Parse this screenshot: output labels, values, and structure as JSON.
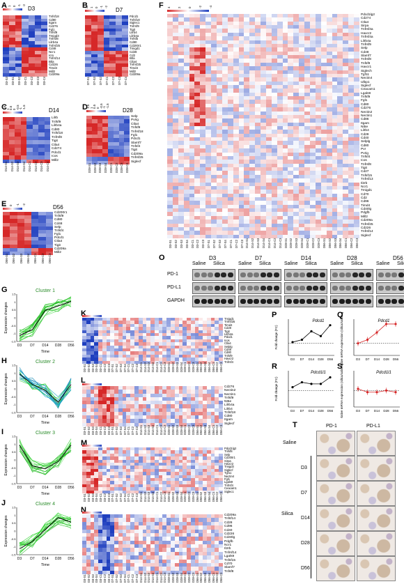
{
  "panels": {
    "A": {
      "letter": "A",
      "title": "D3",
      "scale": [
        "2",
        "1",
        "0",
        "-1",
        "-2"
      ],
      "genes": [
        "Tnfsf18",
        "Cd80",
        "Itgam",
        "Cd276",
        "Fgl1",
        "Tnfsf9",
        "Tmigd3",
        "Tnfrsf8",
        "Lilrb4a",
        "Tnfrsf25",
        "Cd48",
        "Ncr1",
        "Icm",
        "Tnfrsf14",
        "Btla",
        "Cd226",
        "Timd4",
        "Mill2",
        "Cd209a"
      ],
      "samples": [
        "D3-S3",
        "D3-S1",
        "D3-S2",
        "D3-C1",
        "D3-C2",
        "D3-C3",
        "D3-C4"
      ]
    },
    "B": {
      "letter": "B",
      "title": "D7",
      "scale": [
        "2",
        "1",
        "0",
        "-1",
        "-2"
      ],
      "genes": [
        "Pdcd1",
        "Tnfsf18",
        "Siglec1",
        "Tnfrsf9",
        "Tigit",
        "Lilrb4",
        "Lilrb4a",
        "Tnfsfb",
        "Cd80",
        "Cd200r1",
        "Tmigd1",
        "Cd28",
        "Cd2",
        "Btla",
        "Ctla4",
        "Tnfrsf25",
        "Timd4",
        "Mill2",
        "Cd209a"
      ],
      "samples": [
        "D7-S1",
        "D7-S3",
        "D7-S2",
        "D7-C1",
        "D7-C2",
        "D7-C3",
        "D7-C4"
      ]
    },
    "C": {
      "letter": "C",
      "title": "D14",
      "scale": [
        "1.5",
        "1",
        "0.5",
        "0",
        "-0.5",
        "-1",
        "-1.5"
      ],
      "genes": [
        "Lilrb",
        "Tnfsf9",
        "Lilrb4a",
        "Cd80",
        "Tnfsf18",
        "Tnfrsf8",
        "Tigit",
        "Ctla4",
        "Cd274",
        "Pdcd1",
        "Icos",
        "Mill2"
      ],
      "samples": [
        "D14-S1",
        "D14-S2",
        "D14-S3",
        "D14-S4",
        "D14-C1",
        "D14-C2",
        "D14-C3",
        "D14-C4"
      ]
    },
    "D": {
      "letter": "D",
      "title": "D28",
      "scale": [
        "1.5",
        "1",
        "0.5",
        "0",
        "-0.5",
        "-1",
        "-1.5"
      ],
      "genes": [
        "Selp",
        "Pvrig",
        "Ctla4",
        "Tnfsf9",
        "Tnfrsf18",
        "Fgl1",
        "Pdcd1",
        "Slamf7",
        "Tnfsf4",
        "Tigit",
        "Cd209a",
        "Tnfrsf25",
        "Siglecf"
      ],
      "samples": [
        "D28-S1",
        "D28-S2",
        "D28-S3",
        "D28-S4",
        "D28-C1",
        "D28-C2",
        "D28-C3",
        "D28-C4"
      ]
    },
    "E": {
      "letter": "E",
      "title": "D56",
      "scale": [
        "1",
        "0",
        "-1",
        "-2"
      ],
      "genes": [
        "Cd200r1",
        "Tnfsf9",
        "Cd80",
        "Cd48",
        "Selp",
        "Tnfsf4",
        "Fgl1",
        "Pdcd1",
        "Ctla4",
        "Tigit",
        "Cd209a",
        "Mill2"
      ],
      "samples": [
        "D56-S1",
        "D56-S2",
        "D56-S3",
        "D56-S4",
        "D56-C1",
        "D56-C2",
        "D56-C3"
      ]
    },
    "F": {
      "letter": "F",
      "scale": [
        "4",
        "2",
        "0",
        "-2",
        "-4"
      ],
      "genes": [
        "Pdcd1lg2",
        "Cd274",
        "Ctla4",
        "Sirpa",
        "Tnfrsf4a",
        "Havcr2",
        "Tnfrsf4a",
        "Lilrb4a",
        "Tnfrsf9",
        "Selp",
        "Cd48",
        "Slamf7",
        "Tnfrsf8",
        "Tnfsf9",
        "Havcr1",
        "Siglech",
        "Tgf11",
        "Nectin4",
        "Ulbp1",
        "Siglecf",
        "Ceacam1",
        "Lgals9",
        "Tnfsf9",
        "Fgl1",
        "Cd80",
        "Cd276",
        "Nectin2",
        "Nectin1",
        "Cd86",
        "Itgam",
        "Nt5e",
        "Lilrb4",
        "Cd28",
        "Cd40",
        "Selplg",
        "Cd80",
        "Pvr",
        "Pvrig",
        "Tnfsf4",
        "Icos",
        "Tnfrsf8",
        "Tigit",
        "Cd27",
        "Tnfsf15",
        "Tnfrsf13",
        "Il2rb",
        "Ncr1",
        "Tmigd1",
        "Cd70",
        "Cd2",
        "Cd96",
        "Timd4",
        "Cd40lg",
        "Pdgfb",
        "Mill2",
        "Cd209a",
        "Tnfrsf25",
        "Cd226",
        "Tnfrsf14",
        "Siglecf"
      ]
    },
    "G": {
      "letter": "G",
      "title": "Cluster 1",
      "ylabel": "Expression changes",
      "xlabel": "Time"
    },
    "H": {
      "letter": "H",
      "title": "Cluster 2",
      "ylabel": "Expression changes",
      "xlabel": "Time"
    },
    "I": {
      "letter": "I",
      "title": "Cluster 3",
      "ylabel": "Expression changes",
      "xlabel": "Time"
    },
    "J": {
      "letter": "J",
      "title": "Cluster 4",
      "ylabel": "Expression changes",
      "xlabel": "Time"
    },
    "K": {
      "letter": "K",
      "genes": [
        "Tmigd1",
        "Tnfrsf25",
        "Timd4",
        "Cd28",
        "Tigit",
        "Lilrb4a",
        "Pdcd1",
        "Icos",
        "Ctla4",
        "Selplg",
        "Cd48",
        "Cd80",
        "Tnfsf9",
        "Havcr2",
        "Tnfrsf4"
      ]
    },
    "L": {
      "letter": "L",
      "genes": [
        "Cd276",
        "Nectin2",
        "Nectin1",
        "Tnfsf9",
        "Nt5e",
        "Lilrb4a",
        "Lilrb4",
        "Tnfsf18",
        "Cd80",
        "Itgam",
        "Siglecf"
      ]
    },
    "M": {
      "letter": "M",
      "genes": [
        "Pdcd1lg2",
        "Tnfsf8",
        "Selp",
        "Cd200r1",
        "Sirpa",
        "Havcr2",
        "Tmigd3",
        "Siglecf",
        "Tgf11",
        "Nectin4",
        "Fgl1",
        "Lgals9",
        "Tnfrsf4",
        "Ceacam1",
        "Siglec1"
      ]
    },
    "N": {
      "letter": "N",
      "genes": [
        "Cd209a",
        "Tnfsf14",
        "Cd28",
        "Cd96",
        "Cd40",
        "Cd226",
        "Cd40lg",
        "Pdgfb",
        "Ncr1",
        "Il2rb",
        "Tnfrsf14",
        "Lgals9",
        "Tnfsf15",
        "Cd70",
        "Slamf7",
        "Tnfsf8"
      ]
    },
    "O": {
      "letter": "O",
      "timepoints": [
        "D3",
        "D7",
        "D14",
        "D28",
        "D56"
      ],
      "groups": [
        "Saline",
        "Silica"
      ],
      "rows": [
        "PD-1",
        "PD-L1",
        "GAPDH"
      ]
    },
    "P": {
      "letter": "P",
      "gene": "Pdcd1",
      "ylabel": "Fold change (FC)",
      "x": [
        "D3",
        "D7",
        "D14",
        "D28",
        "D56"
      ],
      "values": [
        1.1,
        1.3,
        2.0,
        1.6,
        2.5
      ]
    },
    "Q": {
      "letter": "Q",
      "gene": "Pdcd1",
      "ylabel": "Relative mRNA expression (silica/saline group)",
      "x": [
        "D3",
        "D7",
        "D14",
        "D28",
        "D56"
      ],
      "values": [
        1.0,
        1.3,
        1.9,
        2.6,
        2.6
      ]
    },
    "R": {
      "letter": "R",
      "gene": "Pdcd1l1",
      "ylabel": "Fold change (FC)",
      "x": [
        "D3",
        "D7",
        "D14",
        "D28",
        "D56"
      ],
      "values": [
        1.2,
        1.5,
        1.4,
        1.4,
        1.8
      ]
    },
    "S": {
      "letter": "S",
      "gene": "Pdcd1l1",
      "ylabel": "Relative mRNA expression (silica/saline group)",
      "x": [
        "D3",
        "D7",
        "D14",
        "D28",
        "D56"
      ],
      "values": [
        1.1,
        0.9,
        0.9,
        1.0,
        0.9
      ]
    },
    "T": {
      "letter": "T",
      "cols": [
        "PD-1",
        "PD-L1"
      ],
      "rows": [
        "Saline",
        "D3",
        "D7",
        "D14",
        "D28",
        "D56"
      ],
      "group": "Silica"
    }
  },
  "time_ticks": [
    "D3",
    "D7",
    "D14",
    "D28",
    "D56"
  ]
}
